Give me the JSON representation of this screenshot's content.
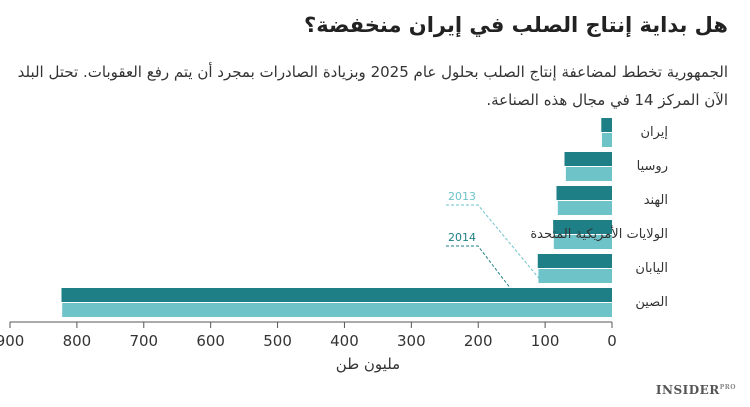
{
  "header": {
    "title": "هل بداية إنتاج الصلب في إيران منخفضة؟",
    "subtitle": "الجمهورية تخطط لمضاعفة إنتاج الصلب بحلول عام 2025 وبزيادة الصادرات بمجرد أن يتم رفع العقوبات. تحتل البلد الآن المركز 14 في مجال هذه الصناعة."
  },
  "brand": {
    "name": "INSIDER",
    "suffix": "PRO"
  },
  "chart_data": {
    "type": "bar",
    "orientation": "horizontal",
    "x_direction": "right-to-left",
    "categories": [
      "إيران",
      "روسيا",
      "الهند",
      "الولايات الأمريكية المتحدة",
      "اليابان",
      "الصين"
    ],
    "series": [
      {
        "name": "2014",
        "color": "#1e7f86",
        "values": [
          16,
          71,
          83,
          88,
          111,
          823
        ]
      },
      {
        "name": "2013",
        "color": "#6ec3c9",
        "values": [
          15,
          69,
          81,
          87,
          110,
          822
        ]
      }
    ],
    "xlim": [
      0,
      900
    ],
    "xticks": [
      0,
      100,
      200,
      300,
      400,
      500,
      600,
      700,
      800,
      900
    ],
    "xlabel": "مليون طن",
    "ylabel": "",
    "grid": false,
    "legend": "inline annotations"
  }
}
